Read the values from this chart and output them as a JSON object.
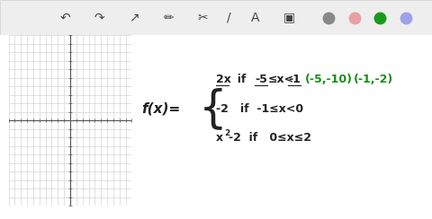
{
  "bg_color": "#ffffff",
  "text_color_black": "#222222",
  "text_color_green": "#1a8a1a",
  "grid_xlim": [
    -10,
    10
  ],
  "grid_ylim": [
    -10,
    10
  ],
  "circle_colors": [
    "#888888",
    "#e8a0a0",
    "#1a9a1a",
    "#a0a0e8"
  ]
}
